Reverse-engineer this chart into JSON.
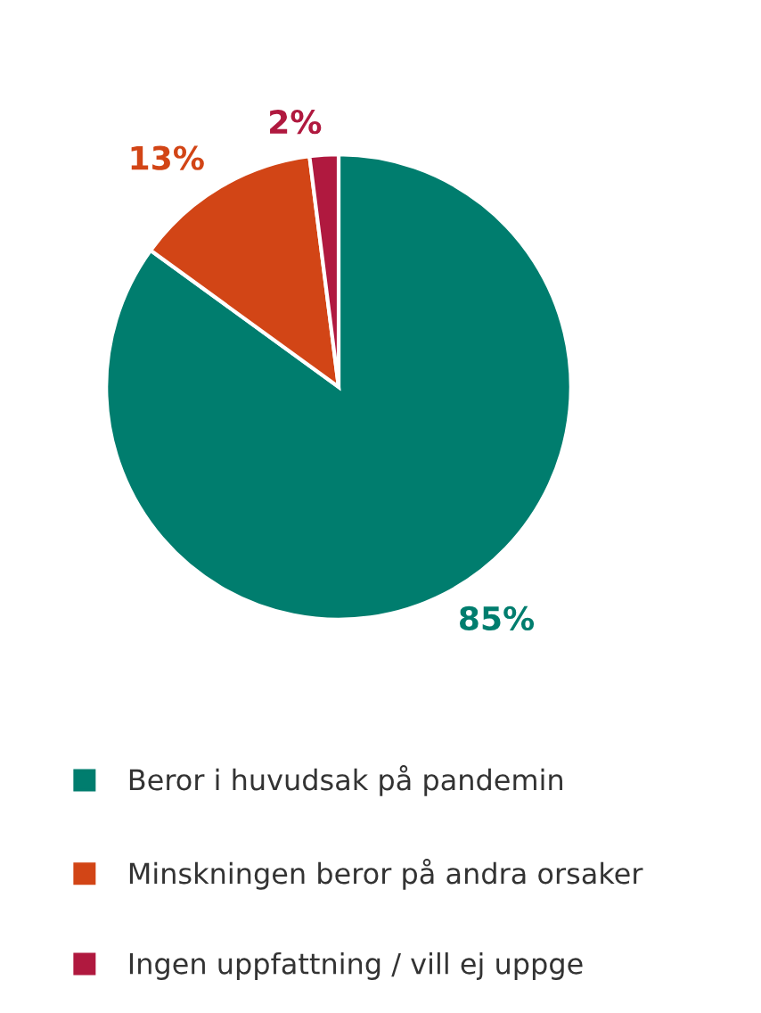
{
  "chart_data": {
    "type": "pie",
    "categories": [
      "Beror i huvudsak på pandemin",
      "Minskningen beror på andra orsaker",
      "Ingen uppfattning / vill ej uppge"
    ],
    "values": [
      85,
      13,
      2
    ],
    "colors": [
      "#007d6e",
      "#d24516",
      "#b0193f"
    ],
    "value_labels": [
      "85%",
      "13%",
      "2%"
    ],
    "legend": "bottom"
  }
}
